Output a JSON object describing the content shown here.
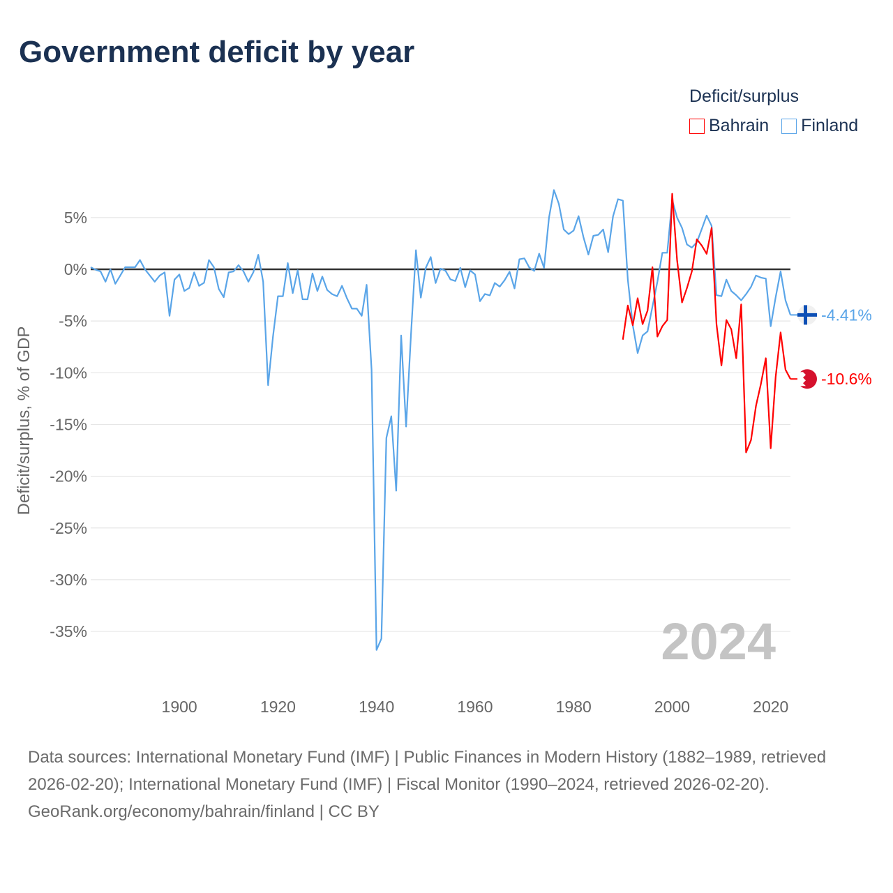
{
  "title": "Government deficit by year",
  "legend": {
    "title": "Deficit/surplus",
    "items": [
      {
        "label": "Bahrain",
        "color": "#ff0000"
      },
      {
        "label": "Finland",
        "color": "#5aa5e8"
      }
    ]
  },
  "chart_data": {
    "type": "line",
    "title": "Government deficit by year",
    "xlabel": "",
    "ylabel": "Deficit/surplus, % of GDP",
    "xlim": [
      1882,
      2024
    ],
    "ylim": [
      -38,
      9
    ],
    "grid": true,
    "legend_position": "top-right",
    "current_year_label": "2024",
    "x_ticks": [
      {
        "value": 1900,
        "label": "1900"
      },
      {
        "value": 1920,
        "label": "1920"
      },
      {
        "value": 1940,
        "label": "1940"
      },
      {
        "value": 1960,
        "label": "1960"
      },
      {
        "value": 1980,
        "label": "1980"
      },
      {
        "value": 2000,
        "label": "2000"
      },
      {
        "value": 2020,
        "label": "2020"
      }
    ],
    "y_ticks": [
      {
        "value": 5,
        "label": "5%"
      },
      {
        "value": 0,
        "label": "0%"
      },
      {
        "value": -5,
        "label": "-5%"
      },
      {
        "value": -10,
        "label": "-10%"
      },
      {
        "value": -15,
        "label": "-15%"
      },
      {
        "value": -20,
        "label": "-20%"
      },
      {
        "value": -25,
        "label": "-25%"
      },
      {
        "value": -30,
        "label": "-30%"
      },
      {
        "value": -35,
        "label": "-35%"
      }
    ],
    "series": [
      {
        "name": "Finland",
        "color": "#5aa5e8",
        "start_year": 1882,
        "end_label": "-4.41%",
        "values": [
          0.2,
          -0.05,
          -0.2,
          -1.2,
          0,
          -1.4,
          -0.6,
          0.2,
          0.2,
          0.2,
          0.9,
          0,
          -0.6,
          -1.2,
          -0.6,
          -0.3,
          -4.5,
          -1.0,
          -0.5,
          -2.1,
          -1.8,
          -0.3,
          -1.6,
          -1.3,
          0.9,
          0.2,
          -1.9,
          -2.7,
          -0.3,
          -0.2,
          0.4,
          -0.2,
          -1.2,
          -0.3,
          1.4,
          -1.2,
          -11.2,
          -6.5,
          -2.6,
          -2.6,
          0.6,
          -2.3,
          -0.1,
          -2.9,
          -2.9,
          -0.4,
          -2.1,
          -0.7,
          -2.0,
          -2.4,
          -2.6,
          -1.6,
          -2.8,
          -3.8,
          -3.8,
          -4.5,
          -1.5,
          -9.7,
          -36.8,
          -35.7,
          -16.3,
          -14.2,
          -21.4,
          -6.4,
          -15.2,
          -6.3,
          1.85,
          -2.74,
          0.14,
          1.19,
          -1.33,
          0.07,
          -0.14,
          -0.97,
          -1.13,
          0.14,
          -1.73,
          -0.11,
          -0.5,
          -3.09,
          -2.39,
          -2.52,
          -1.33,
          -1.67,
          -1.06,
          -0.23,
          -1.85,
          0.97,
          1.06,
          0.18,
          -0.16,
          1.51,
          0.14,
          4.98,
          7.66,
          6.33,
          3.85,
          3.4,
          3.74,
          5.14,
          3.11,
          1.42,
          3.24,
          3.33,
          3.85,
          1.65,
          5.11,
          6.78,
          6.64,
          -1.0,
          -5.4,
          -8.1,
          -6.4,
          -6.0,
          -3.6,
          -1.2,
          1.6,
          1.6,
          6.7,
          5.0,
          4.0,
          2.4,
          2.1,
          2.6,
          3.9,
          5.2,
          4.2,
          -2.5,
          -2.6,
          -1.0,
          -2.1,
          -2.5,
          -3.0,
          -2.4,
          -1.7,
          -0.6,
          -0.8,
          -0.9,
          -5.5,
          -2.7,
          -0.2,
          -3.0,
          -4.41
        ]
      },
      {
        "name": "Bahrain",
        "color": "#ff0000",
        "start_year": 1990,
        "end_label": "-10.6%",
        "values": [
          -6.8,
          -3.5,
          -5.4,
          -2.8,
          -5.3,
          -4.0,
          0.2,
          -6.5,
          -5.5,
          -4.9,
          7.3,
          0.9,
          -3.2,
          -1.8,
          -0.2,
          2.9,
          2.3,
          1.5,
          4.0,
          -5.3,
          -9.3,
          -4.9,
          -5.8,
          -8.6,
          -3.4,
          -17.7,
          -16.5,
          -13.2,
          -11.1,
          -8.6,
          -17.3,
          -10.4,
          -6.1,
          -9.7,
          -10.6
        ]
      }
    ]
  },
  "footer": {
    "sources": "Data sources: International Monetary Fund (IMF) | Public Finances in Modern History (1882–1989, retrieved 2026-02-20); International Monetary Fund (IMF) | Fiscal Monitor (1990–2024, retrieved 2026-02-20).",
    "attribution": "GeoRank.org/economy/bahrain/finland | CC BY"
  }
}
